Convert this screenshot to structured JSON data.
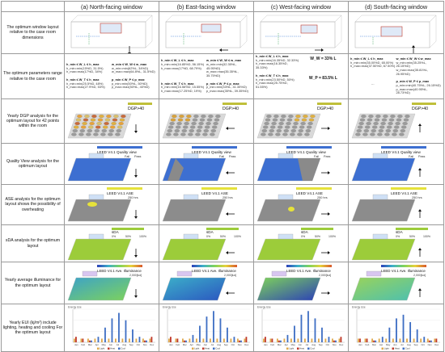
{
  "columns": [
    "(a) North-facing window",
    "(b) East-facing window",
    "(c) West-facing window",
    "(d) South-facing window"
  ],
  "rows": [
    "The optimum window layout relative to the case room dimensions",
    "The optimum parameters range relative to the case room",
    "Yearly DGP analysis for the optimum layout for 42 points within the room",
    "Quality View analysis for the optimum layout",
    "ASE analysis for the optimum layout shows the possibility of overheating",
    "sDA analysis for the optimum layout",
    "Yearly average illuminance for the optimum layout",
    "Yearly EUI (kj/m²) include lighting, heating and cooling For the optimum layout"
  ],
  "params": [
    {
      "l1": "h_min ≤ W_L ≤ h_max",
      "l1a": "h_min=min(15%D, 31.5%)",
      "l1b": "h_max=max(17%D, 34%)",
      "r1": "w_min ≤ W_W ≤ w_max",
      "r1a": "w_min=min(62%L, 34%D)",
      "r1b": "w_max=max(64.8%L, 31.5%D)",
      "l2": "h_min ≤ W_T ≤ h_max",
      "l2a": "h_min=min(25.5%D, 48%)",
      "l2b": "h_max=max(27.9%D, 53%)",
      "r2": "p_min ≤ W_P ≤ p_max",
      "r2a": "p_min=min(50%L, 50%D)",
      "r2b": "p_max=max(50%L, 40%D)"
    },
    {
      "l1": "h_min ≤ W_L ≤ h_max",
      "l1a": "h_min=min(16.85%D, 56.15%)",
      "l1b": "h_max=max(17%D, 68.79%)",
      "r1": "w_min ≤ W_W ≤ w_max",
      "r1a": "w_min=min(32.35%L, 45.95%D)",
      "r1b": "w_max=max(35.35%L, 35.75%D)",
      "l2": "h_min ≤ W_T ≤ h_max",
      "l2a": "h_min=min(16.56%D, 15.55%)",
      "l2b": "h_max=max(17.25%D, 19%)",
      "r2": "p_min ≤ W_P ≤ p_max",
      "r2a": "p_min=min(33%L, 41.35%D)",
      "r2b": "p_max=max(35%L, 39.35%D)"
    },
    {
      "l1": "h_min ≤ W_L ≤ h_max",
      "l1a": "h_min=min(16.35%D, 32.33%)",
      "l1b": "h_max=max(16.35%D, 35.33%)",
      "r1": "W_W = 33%L",
      "r1a": "",
      "r1b": "",
      "l2": "h_min ≤ W_T ≤ h_max",
      "l2a": "h_min=min(23.50%D, 50%)",
      "l2b": "h_max=max(25.75%D, 51.55%)",
      "r2": "W_P = 83.5%L",
      "r2a": "",
      "r2b": ""
    },
    {
      "l1": "h_min ≤ W_L ≤ h_max",
      "l1a": "h_min=min(35.00%D, 65.00%)",
      "l1b": "h_max=max(37.50%D, 67.50%)",
      "r1": "w_min ≤ W_W ≤ w_max",
      "r1a": "w_min=min(35.25%L, 26.15%D)",
      "r1b": "w_max=max(35.81%L, 26.95%D)",
      "l2": "",
      "l2a": "",
      "l2b": "",
      "r2": "p_min ≤ W_P ≤ p_max",
      "r2a": "p_min=min(40.75%L, 26.15%D)",
      "r2b": "p_max=max(40.95%L, 28.73%D)"
    }
  ],
  "west_big": {
    "ww": "W_W = 33% L",
    "wp": "W_P = 83.5% L"
  },
  "dash": "---",
  "dgp_label": "DGP>40",
  "qv_label": "LEED V4.1 Quality view",
  "qv_fail": "Fail",
  "qv_pass": "Pass",
  "ase_label": "LEED V4.1 ASE",
  "ase_value": "250 hrs",
  "sda_label": "sDA",
  "sda_ticks": [
    "0%",
    "50%",
    "100%"
  ],
  "illum_label": "LEED V4.1 Ave. Illuminance",
  "illum_unit": "2,000[lux]",
  "eui_title": "Energy Use",
  "months": [
    "Jan",
    "Feb",
    "Mar",
    "Apr",
    "May",
    "Jun",
    "Jul",
    "Aug",
    "Sep",
    "Oct",
    "Nov",
    "Dec"
  ],
  "eui_legend": [
    "Light",
    "Heat",
    "Cool"
  ],
  "colors": {
    "grid": "#9a9a9a",
    "sda": "#9ccc3a",
    "qv_blue": "#3d6fd1",
    "ase_yellow": "#e6e23a",
    "ase_grey": "#8c8c8c",
    "light": "#e0a84a",
    "heat": "#c0392b",
    "cool": "#3f6fc4"
  },
  "chart_data": [
    {
      "type": "bar",
      "title": "",
      "categories": [
        "Jan",
        "Feb",
        "Mar",
        "Apr",
        "May",
        "Jun",
        "Jul",
        "Aug",
        "Sep",
        "Oct",
        "Nov",
        "Dec"
      ],
      "series": [
        {
          "name": "Light",
          "values": [
            2,
            2,
            2,
            2,
            2,
            2,
            2,
            2,
            2,
            2,
            2,
            2
          ]
        },
        {
          "name": "Heat",
          "values": [
            3,
            2,
            1,
            0,
            0,
            0,
            0,
            0,
            0,
            0,
            1,
            3
          ]
        },
        {
          "name": "Cool",
          "values": [
            0,
            0,
            1,
            3,
            8,
            13,
            16,
            12,
            7,
            3,
            1,
            0
          ]
        }
      ],
      "ylim": [
        0,
        18
      ]
    },
    {
      "type": "bar",
      "title": "",
      "categories": [
        "Jan",
        "Feb",
        "Mar",
        "Apr",
        "May",
        "Jun",
        "Jul",
        "Aug",
        "Sep",
        "Oct",
        "Nov",
        "Dec"
      ],
      "series": [
        {
          "name": "Light",
          "values": [
            2,
            2,
            2,
            2,
            2,
            2,
            2,
            2,
            2,
            2,
            2,
            2
          ]
        },
        {
          "name": "Heat",
          "values": [
            3,
            2,
            1,
            0,
            0,
            0,
            0,
            0,
            0,
            0,
            1,
            3
          ]
        },
        {
          "name": "Cool",
          "values": [
            0,
            0,
            1,
            4,
            9,
            14,
            17,
            13,
            8,
            3,
            1,
            0
          ]
        }
      ],
      "ylim": [
        0,
        18
      ]
    },
    {
      "type": "bar",
      "title": "",
      "categories": [
        "Jan",
        "Feb",
        "Mar",
        "Apr",
        "May",
        "Jun",
        "Jul",
        "Aug",
        "Sep",
        "Oct",
        "Nov",
        "Dec"
      ],
      "series": [
        {
          "name": "Light",
          "values": [
            2,
            2,
            2,
            2,
            2,
            2,
            2,
            2,
            2,
            2,
            2,
            2
          ]
        },
        {
          "name": "Heat",
          "values": [
            3,
            2,
            1,
            0,
            0,
            0,
            0,
            0,
            0,
            0,
            1,
            3
          ]
        },
        {
          "name": "Cool",
          "values": [
            0,
            0,
            1,
            4,
            9,
            15,
            17,
            13,
            8,
            3,
            1,
            0
          ]
        }
      ],
      "ylim": [
        0,
        18
      ]
    },
    {
      "type": "bar",
      "title": "",
      "categories": [
        "Jan",
        "Feb",
        "Mar",
        "Apr",
        "May",
        "Jun",
        "Jul",
        "Aug",
        "Sep",
        "Oct",
        "Nov",
        "Dec"
      ],
      "series": [
        {
          "name": "Light",
          "values": [
            2,
            2,
            2,
            2,
            2,
            2,
            2,
            2,
            2,
            2,
            2,
            2
          ]
        },
        {
          "name": "Heat",
          "values": [
            2,
            2,
            1,
            0,
            0,
            0,
            0,
            0,
            0,
            0,
            1,
            2
          ]
        },
        {
          "name": "Cool",
          "values": [
            0,
            0,
            1,
            3,
            8,
            13,
            15,
            11,
            7,
            3,
            1,
            0
          ]
        }
      ],
      "ylim": [
        0,
        18
      ]
    }
  ]
}
